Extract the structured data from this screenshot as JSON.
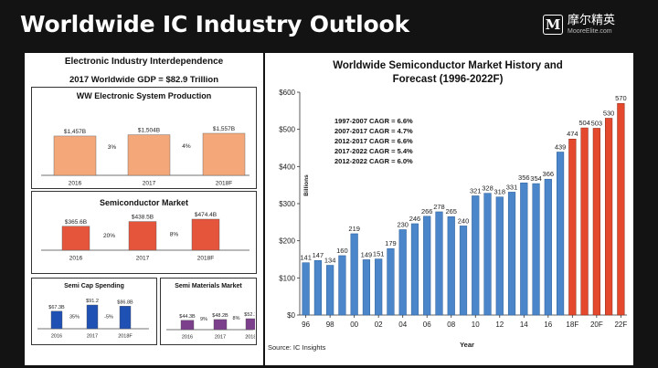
{
  "slide": {
    "title": "Worldwide IC Industry Outlook"
  },
  "logo": {
    "mark": "M",
    "cn": "摩尔精英",
    "en": "MooreElite.com"
  },
  "left_panel": {
    "title": "Electronic Industry Interdependence",
    "gdp": "2017 Worldwide GDP = $82.9 Trillion"
  },
  "colors": {
    "orange": "#F4A87A",
    "red": "#E4553C",
    "blue": "#1F50B4",
    "purple": "#7B3F8B",
    "forecast": "#E4482D",
    "history": "#4A86C9"
  },
  "chart_data": [
    {
      "type": "bar",
      "title": "WW Electronic System Production",
      "categories": [
        "2016",
        "2017",
        "2018F"
      ],
      "values": [
        1457,
        1504,
        1557
      ],
      "value_labels": [
        "$1,457B",
        "$1,504B",
        "$1,557B"
      ],
      "growth_labels": [
        "3%",
        "4%"
      ]
    },
    {
      "type": "bar",
      "title": "Semiconductor Market",
      "categories": [
        "2016",
        "2017",
        "2018F"
      ],
      "values": [
        365.6,
        438.5,
        474.4
      ],
      "value_labels": [
        "$365.6B",
        "$438.5B",
        "$474.4B"
      ],
      "growth_labels": [
        "20%",
        "8%"
      ]
    },
    {
      "type": "bar",
      "title": "Semi Cap Spending",
      "categories": [
        "2016",
        "2017",
        "2018F"
      ],
      "values": [
        67.3,
        91.2,
        86.8
      ],
      "value_labels": [
        "$67.3B",
        "$91.2",
        "$86.8B"
      ],
      "growth_labels": [
        "35%",
        "-5%"
      ]
    },
    {
      "type": "bar",
      "title": "Semi Materials Market",
      "categories": [
        "2016",
        "2017",
        "2018F"
      ],
      "values": [
        44.3,
        48.2,
        52.1
      ],
      "value_labels": [
        "$44.3B",
        "$48.2B",
        "$52.1B"
      ],
      "growth_labels": [
        "9%",
        "8%"
      ]
    },
    {
      "type": "bar",
      "title": "Worldwide Semiconductor Market History and Forecast (1996-2022F)",
      "title_lines": [
        "Worldwide Semiconductor Market History and",
        "Forecast (1996-2022F)"
      ],
      "xlabel": "Year",
      "ylabel": "Billions",
      "ylim": [
        0,
        600
      ],
      "yticks": [
        "$0",
        "$100",
        "$200",
        "$300",
        "$400",
        "$500",
        "$600"
      ],
      "x_tick_labels": [
        "96",
        "98",
        "00",
        "02",
        "04",
        "06",
        "08",
        "10",
        "12",
        "14",
        "16",
        "18F",
        "20F",
        "22F"
      ],
      "categories": [
        "1996",
        "1997",
        "1998",
        "1999",
        "2000",
        "2001",
        "2002",
        "2003",
        "2004",
        "2005",
        "2006",
        "2007",
        "2008",
        "2009",
        "2010",
        "2011",
        "2012",
        "2013",
        "2014",
        "2015",
        "2016",
        "2017",
        "2018F",
        "2019F",
        "2020F",
        "2021F",
        "2022F"
      ],
      "values": [
        141,
        147,
        134,
        160,
        219,
        149,
        151,
        179,
        230,
        246,
        266,
        278,
        265,
        240,
        321,
        328,
        318,
        331,
        356,
        354,
        366,
        439,
        474,
        504,
        503,
        530,
        570
      ],
      "forecast_from_index": 22,
      "cagr_notes": [
        "1997-2007 CAGR = 6.6%",
        "2007-2017 CAGR = 4.7%",
        "2012-2017 CAGR = 6.6%",
        "2017-2022 CAGR = 5.4%",
        "2012-2022 CAGR = 6.0%"
      ],
      "source": "Source: IC Insights"
    }
  ]
}
